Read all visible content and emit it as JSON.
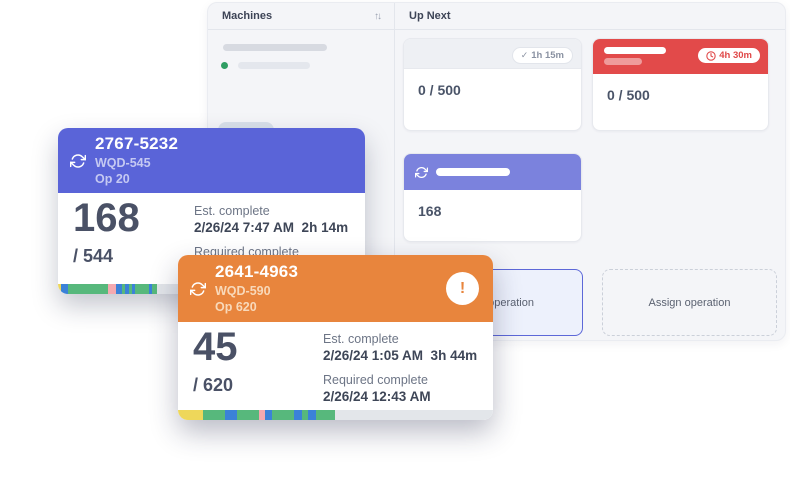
{
  "colors": {
    "blue_accent": "#5a64d8",
    "orange_accent": "#e8853d",
    "red_accent": "#e24a4a",
    "purple_accent": "#7b82dd",
    "upnext_header_gray": "#eef0f4",
    "timeline_yellow": "#eed75a",
    "timeline_green": "#57b87c",
    "timeline_blue": "#3b82d8",
    "timeline_pink": "#f4a9b0",
    "timeline_gray": "#e3e6ea"
  },
  "panel": {
    "machines": {
      "title": "Machines",
      "sort_icon": "↑↓"
    },
    "up_next": {
      "title": "Up Next",
      "cards": [
        {
          "badge_check": "✓",
          "badge_time": "1h 15m",
          "count": "0 / 500"
        },
        {
          "badge_time": "4h 30m",
          "count": "0 / 500"
        },
        {
          "count": "168"
        }
      ],
      "assign_slots": [
        {
          "label": "Assign operation"
        },
        {
          "label": "Assign operation"
        }
      ]
    }
  },
  "machine_cards": [
    {
      "id": "2767-5232",
      "program": "WQD-545",
      "op": "Op 20",
      "count": "168",
      "total": "/ 544",
      "est_label": "Est. complete",
      "est_value": "2/26/24 7:47 AM  2h 14m",
      "req_label": "Required complete",
      "accent": "#5a64d8",
      "timeline": [
        {
          "color": "#eed75a",
          "w": 1.0
        },
        {
          "color": "#3b82d8",
          "w": 2.2
        },
        {
          "color": "#57b87c",
          "w": 13.2
        },
        {
          "color": "#f4a9b0",
          "w": 2.6
        },
        {
          "color": "#3b82d8",
          "w": 1.9
        },
        {
          "color": "#57b87c",
          "w": 0.8
        },
        {
          "color": "#3b82d8",
          "w": 1.3
        },
        {
          "color": "#57b87c",
          "w": 1.1
        },
        {
          "color": "#3b82d8",
          "w": 1.1
        },
        {
          "color": "#57b87c",
          "w": 4.4
        },
        {
          "color": "#3b82d8",
          "w": 1.1
        },
        {
          "color": "#57b87c",
          "w": 1.7
        },
        {
          "color": "#e3e6ea",
          "w": 67.6
        }
      ]
    },
    {
      "id": "2641-4963",
      "program": "WQD-590",
      "op": "Op 620",
      "count": "45",
      "total": "/ 620",
      "est_label": "Est. complete",
      "est_value": "2/26/24 1:05 AM  3h 44m",
      "req_label": "Required complete",
      "req_value": "2/26/24 12:43 AM",
      "alert": "!",
      "accent": "#e8853d",
      "timeline": [
        {
          "color": "#eed75a",
          "w": 7.9
        },
        {
          "color": "#57b87c",
          "w": 6.9
        },
        {
          "color": "#3b82d8",
          "w": 3.9
        },
        {
          "color": "#57b87c",
          "w": 7.0
        },
        {
          "color": "#f4a9b0",
          "w": 2.0
        },
        {
          "color": "#3b82d8",
          "w": 2.2
        },
        {
          "color": "#57b87c",
          "w": 6.9
        },
        {
          "color": "#3b82d8",
          "w": 2.5
        },
        {
          "color": "#57b87c",
          "w": 2.0
        },
        {
          "color": "#3b82d8",
          "w": 2.5
        },
        {
          "color": "#57b87c",
          "w": 6.0
        },
        {
          "color": "#e3e6ea",
          "w": 50.2
        }
      ]
    }
  ]
}
